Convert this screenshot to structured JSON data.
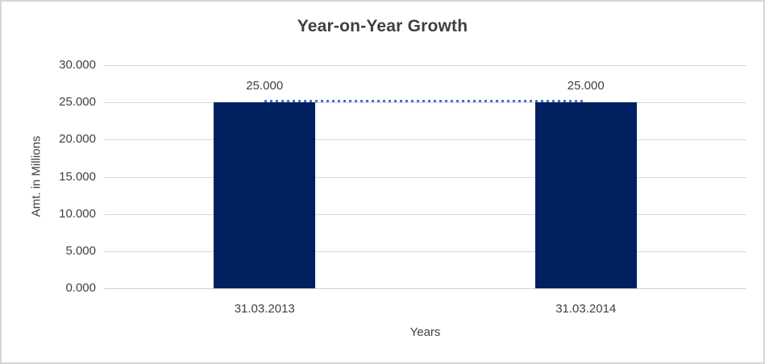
{
  "colors": {
    "background": "#ffffff",
    "border": "#d6d6d6",
    "gridline": "#d9d9d9",
    "axis_line": "#d0d0d0",
    "bar": "#002060",
    "dotted_line": "#4472c4",
    "text": "#404040",
    "title_text": "#3f3f3f"
  },
  "chart_data": {
    "type": "bar",
    "title": "Year-on-Year Growth",
    "xlabel": "Years",
    "ylabel": "Amt. in Millions",
    "categories": [
      "31.03.2013",
      "31.03.2014"
    ],
    "series": [
      {
        "name": "amount-bars",
        "type": "bar",
        "values": [
          25.0,
          25.0
        ]
      },
      {
        "name": "growth-connector",
        "type": "line",
        "line_style": "dotted",
        "values": [
          25.0,
          25.0
        ]
      }
    ],
    "data_labels": [
      "25.000",
      "25.000"
    ],
    "ylim": [
      0,
      30
    ],
    "y_ticks": [
      {
        "value": 0,
        "label": "0.000"
      },
      {
        "value": 5,
        "label": "5.000"
      },
      {
        "value": 10,
        "label": "10.000"
      },
      {
        "value": 15,
        "label": "15.000"
      },
      {
        "value": 20,
        "label": "20.000"
      },
      {
        "value": 25,
        "label": "25.000"
      },
      {
        "value": 30,
        "label": "30.000"
      }
    ],
    "grid": true,
    "legend": "none"
  }
}
